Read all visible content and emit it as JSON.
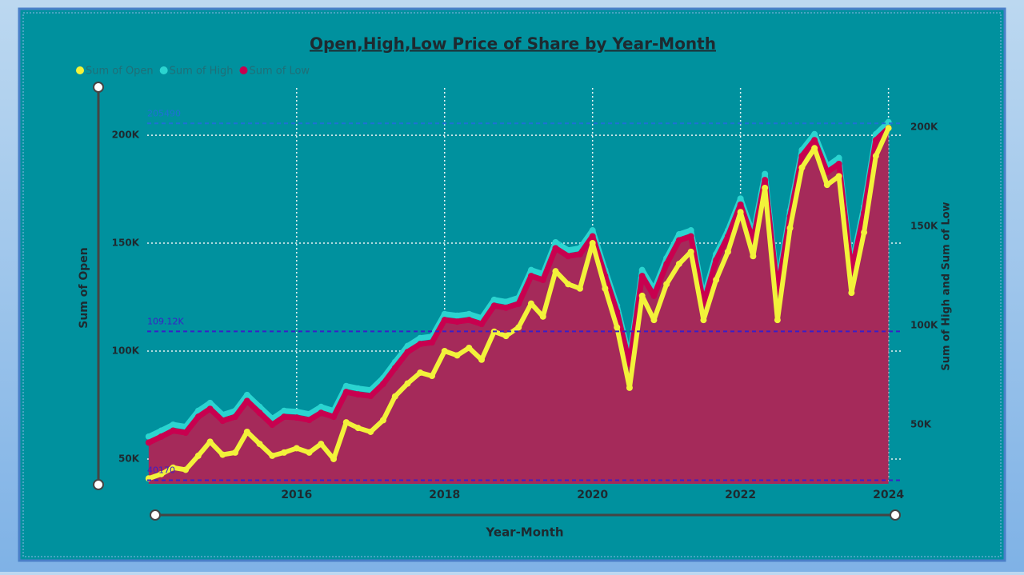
{
  "chart_data": {
    "type": "line",
    "title": "Open,High,Low Price of Share by Year-Month",
    "x_label": "Year-Month",
    "y_label": "Sum of Open",
    "y2_label": "Sum of High and Sum of Low",
    "legend": "top-left",
    "x": [
      2014,
      2014.17,
      2014.33,
      2014.5,
      2014.67,
      2014.83,
      2015,
      2015.17,
      2015.33,
      2015.5,
      2015.67,
      2015.83,
      2016,
      2016.17,
      2016.33,
      2016.5,
      2016.67,
      2016.83,
      2017,
      2017.17,
      2017.33,
      2017.5,
      2017.67,
      2017.83,
      2018,
      2018.17,
      2018.33,
      2018.5,
      2018.67,
      2018.83,
      2019,
      2019.17,
      2019.33,
      2019.5,
      2019.67,
      2019.83,
      2020,
      2020.17,
      2020.33,
      2020.5,
      2020.67,
      2020.83,
      2021,
      2021.17,
      2021.33,
      2021.5,
      2021.67,
      2021.83,
      2022,
      2022.17,
      2022.33,
      2022.5,
      2022.67,
      2022.83,
      2023,
      2023.17,
      2023.33,
      2023.5,
      2023.67,
      2023.83,
      2024
    ],
    "series": [
      {
        "name": "Sum of Open",
        "color": "#f2f23a",
        "axis": "y",
        "values": [
          41000,
          43000,
          46000,
          45000,
          51500,
          58000,
          52000,
          53000,
          62600,
          57000,
          51500,
          53000,
          55000,
          53000,
          57000,
          50000,
          67000,
          64400,
          62600,
          68000,
          79000,
          85000,
          90000,
          88500,
          100000,
          98000,
          101500,
          96000,
          109000,
          107000,
          111000,
          122000,
          116000,
          137000,
          131000,
          129000,
          150000,
          129000,
          111000,
          83000,
          125600,
          114400,
          131000,
          140400,
          146000,
          114400,
          133000,
          146000,
          164400,
          144000,
          175600,
          114400,
          157000,
          185000,
          194000,
          177000,
          181000,
          127000,
          155000,
          190400,
          203300
        ]
      },
      {
        "name": "Sum of High",
        "color": "#2bd4d0",
        "axis": "y2",
        "values": [
          44000,
          47000,
          50000,
          49000,
          57000,
          61000,
          55000,
          57000,
          65000,
          59000,
          53000,
          57000,
          56600,
          55400,
          59000,
          57000,
          69500,
          68300,
          67500,
          73600,
          81600,
          89700,
          93700,
          94500,
          105800,
          105000,
          105800,
          103800,
          113000,
          112000,
          114000,
          128000,
          126000,
          142000,
          138000,
          139000,
          148000,
          128000,
          110000,
          83600,
          128000,
          118000,
          134000,
          146000,
          148000,
          114000,
          136000,
          148000,
          164000,
          146000,
          176400,
          120000,
          158000,
          188500,
          196500,
          180400,
          184500,
          130000,
          160000,
          196500,
          202600
        ]
      },
      {
        "name": "Sum of Low",
        "color": "#c8004f",
        "axis": "y2",
        "values": [
          41000,
          44000,
          47000,
          46000,
          54000,
          58000,
          52000,
          54000,
          62000,
          56000,
          50000,
          54000,
          53600,
          52400,
          56000,
          54000,
          66500,
          65300,
          64500,
          70600,
          78600,
          86700,
          90700,
          91500,
          102800,
          102000,
          102800,
          100800,
          110000,
          109000,
          111000,
          125000,
          123000,
          139000,
          135000,
          136000,
          145000,
          125000,
          107000,
          80600,
          125000,
          115000,
          131000,
          143000,
          145000,
          111000,
          133000,
          145000,
          161000,
          143000,
          173400,
          117000,
          155000,
          185500,
          193500,
          177400,
          181500,
          127000,
          157000,
          193500,
          199600
        ]
      }
    ],
    "area_color": "#a52a5a",
    "xlim": [
      2013.98,
      2024.08
    ],
    "xticks": [
      2016,
      2018,
      2020,
      2022,
      2024
    ],
    "ylim": [
      38500,
      221900
    ],
    "yticks": [
      {
        "value": 50000,
        "label": "50K"
      },
      {
        "value": 100000,
        "label": "100K"
      },
      {
        "value": 150000,
        "label": "150K"
      },
      {
        "value": 200000,
        "label": "200K"
      }
    ],
    "y2lim": [
      20200,
      219800
    ],
    "y2ticks": [
      {
        "value": 50000,
        "label": "50K"
      },
      {
        "value": 100000,
        "label": "100K"
      },
      {
        "value": 150000,
        "label": "150K"
      },
      {
        "value": 200000,
        "label": "200K"
      }
    ],
    "reference_lines": [
      {
        "value": 205490,
        "label": "205490",
        "color": "#1f6fd6"
      },
      {
        "value": 109120,
        "label": "109.12K",
        "color": "#3a1fc8"
      },
      {
        "value": 40170,
        "label": "40170",
        "color": "#3a1fc8"
      }
    ],
    "grid": true
  }
}
